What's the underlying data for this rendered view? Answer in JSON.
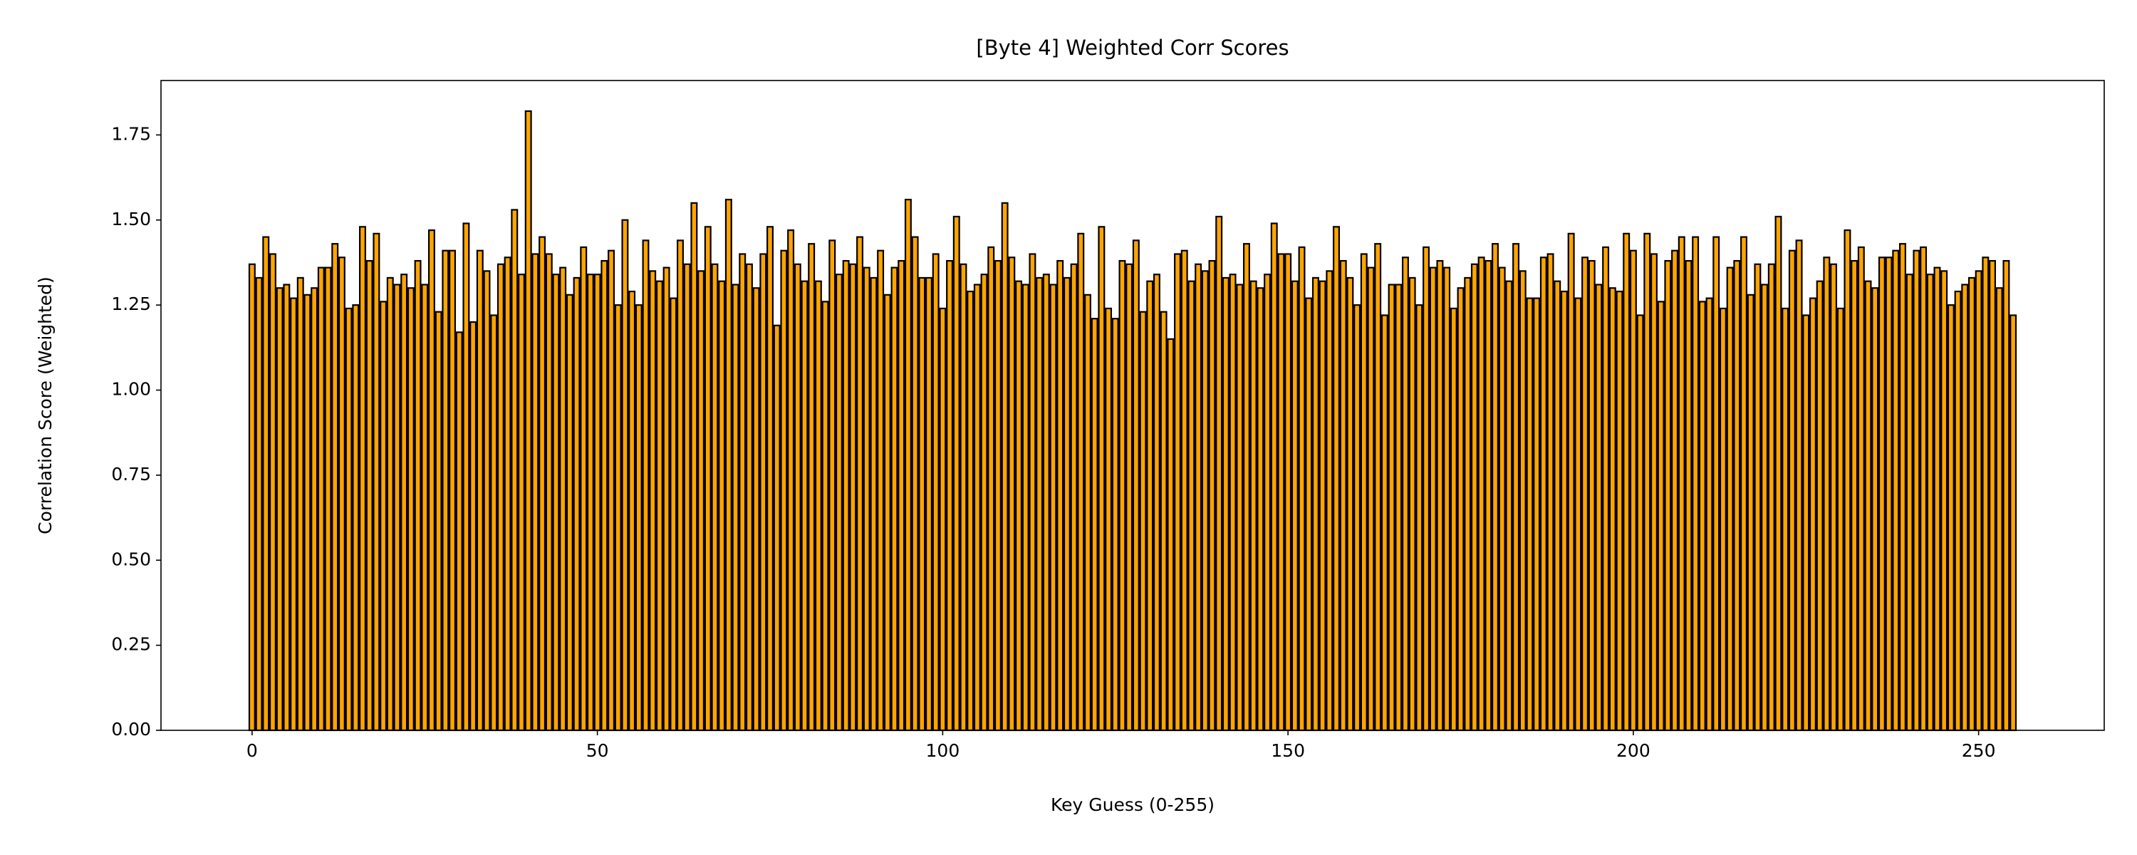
{
  "chart_data": {
    "type": "bar",
    "title": "[Byte 4] Weighted Corr Scores",
    "xlabel": "Key Guess (0-255)",
    "ylabel": "Correlation Score (Weighted)",
    "color": "#ffa500",
    "edgecolor": "#000000",
    "x": [
      0,
      1,
      2,
      3,
      4,
      5,
      6,
      7,
      8,
      9,
      10,
      11,
      12,
      13,
      14,
      15,
      16,
      17,
      18,
      19,
      20,
      21,
      22,
      23,
      24,
      25,
      26,
      27,
      28,
      29,
      30,
      31,
      32,
      33,
      34,
      35,
      36,
      37,
      38,
      39,
      40,
      41,
      42,
      43,
      44,
      45,
      46,
      47,
      48,
      49,
      50,
      51,
      52,
      53,
      54,
      55,
      56,
      57,
      58,
      59,
      60,
      61,
      62,
      63,
      64,
      65,
      66,
      67,
      68,
      69,
      70,
      71,
      72,
      73,
      74,
      75,
      76,
      77,
      78,
      79,
      80,
      81,
      82,
      83,
      84,
      85,
      86,
      87,
      88,
      89,
      90,
      91,
      92,
      93,
      94,
      95,
      96,
      97,
      98,
      99,
      100,
      101,
      102,
      103,
      104,
      105,
      106,
      107,
      108,
      109,
      110,
      111,
      112,
      113,
      114,
      115,
      116,
      117,
      118,
      119,
      120,
      121,
      122,
      123,
      124,
      125,
      126,
      127,
      128,
      129,
      130,
      131,
      132,
      133,
      134,
      135,
      136,
      137,
      138,
      139,
      140,
      141,
      142,
      143,
      144,
      145,
      146,
      147,
      148,
      149,
      150,
      151,
      152,
      153,
      154,
      155,
      156,
      157,
      158,
      159,
      160,
      161,
      162,
      163,
      164,
      165,
      166,
      167,
      168,
      169,
      170,
      171,
      172,
      173,
      174,
      175,
      176,
      177,
      178,
      179,
      180,
      181,
      182,
      183,
      184,
      185,
      186,
      187,
      188,
      189,
      190,
      191,
      192,
      193,
      194,
      195,
      196,
      197,
      198,
      199,
      200,
      201,
      202,
      203,
      204,
      205,
      206,
      207,
      208,
      209,
      210,
      211,
      212,
      213,
      214,
      215,
      216,
      217,
      218,
      219,
      220,
      221,
      222,
      223,
      224,
      225,
      226,
      227,
      228,
      229,
      230,
      231,
      232,
      233,
      234,
      235,
      236,
      237,
      238,
      239,
      240,
      241,
      242,
      243,
      244,
      245,
      246,
      247,
      248,
      249,
      250,
      251,
      252,
      253,
      254,
      255
    ],
    "values": [
      1.37,
      1.33,
      1.45,
      1.4,
      1.3,
      1.31,
      1.27,
      1.33,
      1.28,
      1.3,
      1.36,
      1.36,
      1.43,
      1.39,
      1.24,
      1.25,
      1.48,
      1.38,
      1.46,
      1.26,
      1.33,
      1.31,
      1.34,
      1.3,
      1.38,
      1.31,
      1.47,
      1.23,
      1.41,
      1.41,
      1.17,
      1.49,
      1.2,
      1.41,
      1.35,
      1.22,
      1.37,
      1.39,
      1.53,
      1.34,
      1.82,
      1.4,
      1.45,
      1.4,
      1.34,
      1.36,
      1.28,
      1.33,
      1.42,
      1.34,
      1.34,
      1.38,
      1.41,
      1.25,
      1.5,
      1.29,
      1.25,
      1.44,
      1.35,
      1.32,
      1.36,
      1.27,
      1.44,
      1.37,
      1.55,
      1.35,
      1.48,
      1.37,
      1.32,
      1.56,
      1.31,
      1.4,
      1.37,
      1.3,
      1.4,
      1.48,
      1.19,
      1.41,
      1.47,
      1.37,
      1.32,
      1.43,
      1.32,
      1.26,
      1.44,
      1.34,
      1.38,
      1.37,
      1.45,
      1.36,
      1.33,
      1.41,
      1.28,
      1.36,
      1.38,
      1.56,
      1.45,
      1.33,
      1.33,
      1.4,
      1.24,
      1.38,
      1.51,
      1.37,
      1.29,
      1.31,
      1.34,
      1.42,
      1.38,
      1.55,
      1.39,
      1.32,
      1.31,
      1.4,
      1.33,
      1.34,
      1.31,
      1.38,
      1.33,
      1.37,
      1.46,
      1.28,
      1.21,
      1.48,
      1.24,
      1.21,
      1.38,
      1.37,
      1.44,
      1.23,
      1.32,
      1.34,
      1.23,
      1.15,
      1.4,
      1.41,
      1.32,
      1.37,
      1.35,
      1.38,
      1.51,
      1.33,
      1.34,
      1.31,
      1.43,
      1.32,
      1.3,
      1.34,
      1.49,
      1.4,
      1.4,
      1.32,
      1.42,
      1.27,
      1.33,
      1.32,
      1.35,
      1.48,
      1.38,
      1.33,
      1.25,
      1.4,
      1.36,
      1.43,
      1.22,
      1.31,
      1.31,
      1.39,
      1.33,
      1.25,
      1.42,
      1.36,
      1.38,
      1.36,
      1.24,
      1.3,
      1.33,
      1.37,
      1.39,
      1.38,
      1.43,
      1.36,
      1.32,
      1.43,
      1.35,
      1.27,
      1.27,
      1.39,
      1.4,
      1.32,
      1.29,
      1.46,
      1.27,
      1.39,
      1.38,
      1.31,
      1.42,
      1.3,
      1.29,
      1.46,
      1.41,
      1.22,
      1.46,
      1.4,
      1.26,
      1.38,
      1.41,
      1.45,
      1.38,
      1.45,
      1.26,
      1.27,
      1.45,
      1.24,
      1.36,
      1.38,
      1.45,
      1.28,
      1.37,
      1.31,
      1.37,
      1.51,
      1.24,
      1.41,
      1.44,
      1.22,
      1.27,
      1.32,
      1.39,
      1.37,
      1.24,
      1.47,
      1.38,
      1.42,
      1.32,
      1.3,
      1.39,
      1.39,
      1.41,
      1.43,
      1.34,
      1.41,
      1.42,
      1.34,
      1.36,
      1.35,
      1.25,
      1.29,
      1.31,
      1.33,
      1.35,
      1.39,
      1.38,
      1.3,
      1.38,
      1.22
    ],
    "xlim": [
      -13.19,
      268.19
    ],
    "xticks": [
      0,
      50,
      100,
      150,
      200,
      250
    ],
    "ylim": [
      0,
      1.91
    ],
    "yticks": [
      {
        "value": 0,
        "label": "0.00"
      },
      {
        "value": 0.25,
        "label": "0.25"
      },
      {
        "value": 0.5,
        "label": "0.50"
      },
      {
        "value": 0.75,
        "label": "0.75"
      },
      {
        "value": 1,
        "label": "1.00"
      },
      {
        "value": 1.25,
        "label": "1.25"
      },
      {
        "value": 1.5,
        "label": "1.50"
      },
      {
        "value": 1.75,
        "label": "1.75"
      }
    ],
    "grid": false
  }
}
